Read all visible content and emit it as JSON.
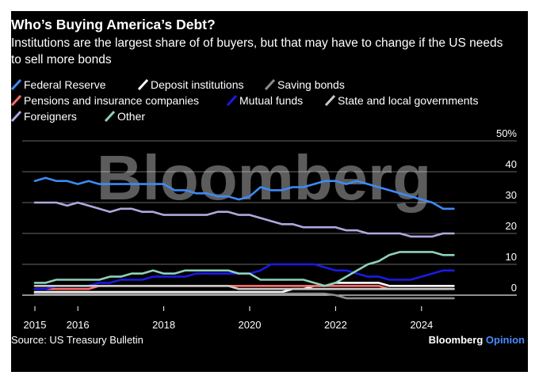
{
  "title": "Who’s Buying America’s Debt?",
  "subtitle": "Institutions are the largest share of of buyers, but that may have to change if the US needs to sell more bonds",
  "watermark": "Bloomberg",
  "source": "Source: US Treasury Bulletin",
  "brand": {
    "main": "Bloomberg",
    "opinion": " Opinion"
  },
  "colors": {
    "background": "#000000",
    "federal_reserve": "#3d8af7",
    "deposit_institutions": "#ffffff",
    "saving_bonds": "#8c8c8c",
    "pensions_insurance": "#ff6b6b",
    "mutual_funds": "#1a1ae6",
    "state_local": "#c8c8c8",
    "foreigners": "#b3a6dd",
    "other": "#8fd1b9",
    "brand_opinion": "#4a8cff"
  },
  "chart_data": {
    "type": "line",
    "ylim": [
      0,
      50
    ],
    "xlim": [
      2015,
      2025
    ],
    "x_ticks": [
      {
        "value": 2015,
        "label": "2015"
      },
      {
        "value": 2016,
        "label": "2016"
      },
      {
        "value": 2018,
        "label": "2018"
      },
      {
        "value": 2020,
        "label": "2020"
      },
      {
        "value": 2022,
        "label": "2022"
      },
      {
        "value": 2024,
        "label": "2024"
      }
    ],
    "y_ticks": [
      {
        "value": 50,
        "label": "50%"
      },
      {
        "value": 40,
        "label": "40"
      },
      {
        "value": 30,
        "label": "30"
      },
      {
        "value": 20,
        "label": "20"
      },
      {
        "value": 10,
        "label": "10"
      },
      {
        "value": 0,
        "label": "0"
      }
    ],
    "grid": true,
    "legend_position": "top",
    "x": [
      2015.0,
      2015.25,
      2015.5,
      2015.75,
      2016.0,
      2016.25,
      2016.5,
      2016.75,
      2017.0,
      2017.25,
      2017.5,
      2017.75,
      2018.0,
      2018.25,
      2018.5,
      2018.75,
      2019.0,
      2019.25,
      2019.5,
      2019.75,
      2020.0,
      2020.25,
      2020.5,
      2020.75,
      2021.0,
      2021.25,
      2021.5,
      2021.75,
      2022.0,
      2022.25,
      2022.5,
      2022.75,
      2023.0,
      2023.25,
      2023.5,
      2023.75,
      2024.0,
      2024.25,
      2024.5,
      2024.75
    ],
    "series": [
      {
        "name": "Federal Reserve",
        "color": "#3d8af7",
        "values": [
          37,
          38,
          37,
          37,
          36,
          37,
          36,
          36,
          36,
          36,
          36,
          36,
          36,
          34,
          34,
          33,
          33,
          32,
          32,
          31,
          32,
          35,
          34,
          34,
          35,
          35,
          36,
          37,
          37,
          36,
          37,
          36,
          35,
          34,
          33,
          32,
          31,
          30,
          28,
          28
        ]
      },
      {
        "name": "Deposit institutions",
        "color": "#ffffff",
        "values": [
          1,
          1,
          1,
          1,
          1,
          1,
          1,
          1,
          1,
          1,
          1,
          1,
          1,
          1,
          1,
          1,
          1,
          1,
          1,
          1,
          1,
          1,
          1,
          1,
          2,
          2,
          3,
          3,
          4,
          4,
          4,
          4,
          4,
          3,
          3,
          3,
          3,
          3,
          3,
          3
        ]
      },
      {
        "name": "Saving bonds",
        "color": "#8c8c8c",
        "values": [
          0.5,
          0.5,
          0.5,
          0.5,
          0.5,
          0.5,
          0.5,
          0.5,
          0.5,
          0.5,
          0.5,
          0.5,
          0.5,
          0.5,
          0.5,
          0.5,
          0.5,
          0.5,
          0.5,
          0.5,
          0.5,
          0.5,
          0.5,
          0.5,
          0.5,
          0.5,
          0.5,
          0.5,
          0,
          -1,
          -1,
          -1,
          -1,
          -1,
          -1,
          -1,
          -1,
          -1,
          -1,
          -1
        ]
      },
      {
        "name": "Pensions and insurance companies",
        "color": "#ff6b6b",
        "values": [
          2,
          2,
          2,
          2,
          2,
          2,
          3,
          3,
          3,
          3,
          3,
          3,
          3,
          3,
          3,
          3,
          3,
          3,
          3,
          3,
          3,
          3,
          3,
          3,
          3,
          3,
          3,
          3,
          3,
          3,
          3,
          3,
          3,
          2,
          2,
          2,
          2,
          2,
          2,
          2
        ]
      },
      {
        "name": "Mutual funds",
        "color": "#1a1ae6",
        "values": [
          2,
          2,
          3,
          3,
          3,
          3,
          4,
          4,
          5,
          5,
          5,
          6,
          6,
          6,
          6,
          7,
          7,
          7,
          7,
          7,
          7,
          8,
          10,
          10,
          10,
          10,
          10,
          9,
          8,
          8,
          7,
          6,
          6,
          5,
          5,
          5,
          6,
          7,
          8,
          8
        ]
      },
      {
        "name": "State and local governments",
        "color": "#c8c8c8",
        "values": [
          3,
          3,
          3,
          3,
          3,
          3,
          3,
          3,
          3,
          3,
          3,
          3,
          3,
          3,
          3,
          3,
          3,
          3,
          3,
          2,
          2,
          2,
          2,
          2,
          2,
          2,
          2,
          2,
          2,
          2,
          2,
          2,
          2,
          2,
          2,
          2,
          2,
          2,
          2,
          2
        ]
      },
      {
        "name": "Foreigners",
        "color": "#b3a6dd",
        "values": [
          30,
          30,
          30,
          29,
          30,
          29,
          28,
          27,
          28,
          28,
          27,
          27,
          26,
          26,
          26,
          26,
          26,
          27,
          27,
          26,
          26,
          25,
          24,
          23,
          23,
          22,
          22,
          22,
          22,
          21,
          21,
          20,
          20,
          20,
          20,
          19,
          19,
          19,
          20,
          20
        ]
      },
      {
        "name": "Other",
        "color": "#8fd1b9",
        "values": [
          4,
          4,
          5,
          5,
          5,
          5,
          5,
          6,
          6,
          7,
          7,
          8,
          7,
          7,
          8,
          8,
          8,
          8,
          8,
          7,
          7,
          5,
          5,
          5,
          5,
          5,
          4,
          3,
          4,
          6,
          8,
          10,
          11,
          13,
          14,
          14,
          14,
          14,
          13,
          13
        ]
      }
    ]
  }
}
